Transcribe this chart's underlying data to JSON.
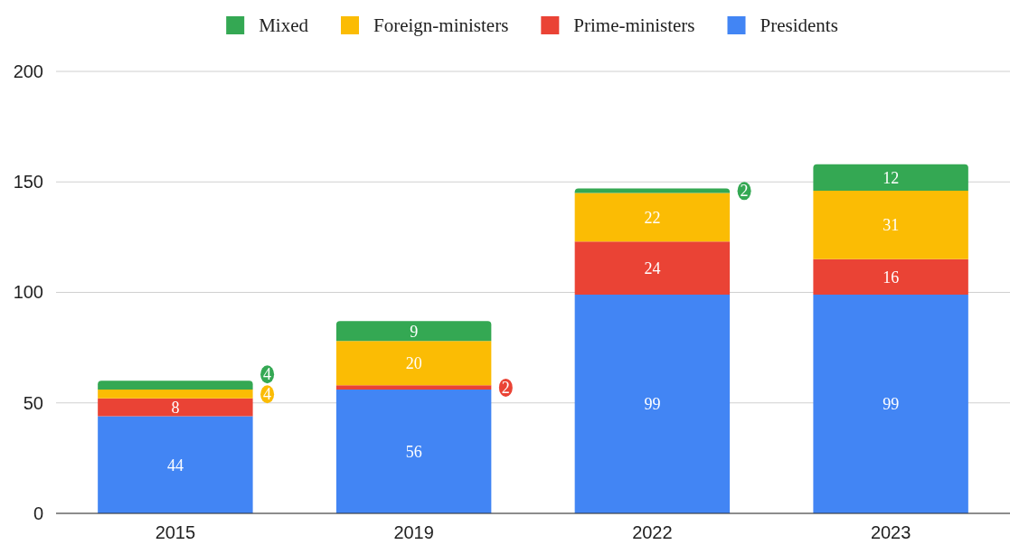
{
  "chart_data": {
    "type": "bar",
    "stacked": true,
    "categories": [
      "2015",
      "2019",
      "2022",
      "2023"
    ],
    "series": [
      {
        "name": "Presidents",
        "color": "#4285f4",
        "values": [
          44,
          56,
          99,
          99
        ]
      },
      {
        "name": "Prime-ministers",
        "color": "#ea4335",
        "values": [
          8,
          2,
          24,
          16
        ]
      },
      {
        "name": "Foreign-ministers",
        "color": "#fbbc04",
        "values": [
          4,
          20,
          22,
          31
        ]
      },
      {
        "name": "Mixed",
        "color": "#34a853",
        "values": [
          4,
          9,
          2,
          12
        ]
      }
    ],
    "ylim": [
      0,
      200
    ],
    "yticks": [
      0,
      50,
      100,
      150,
      200
    ],
    "grid": "y",
    "legend": "top",
    "data_labels": true
  }
}
